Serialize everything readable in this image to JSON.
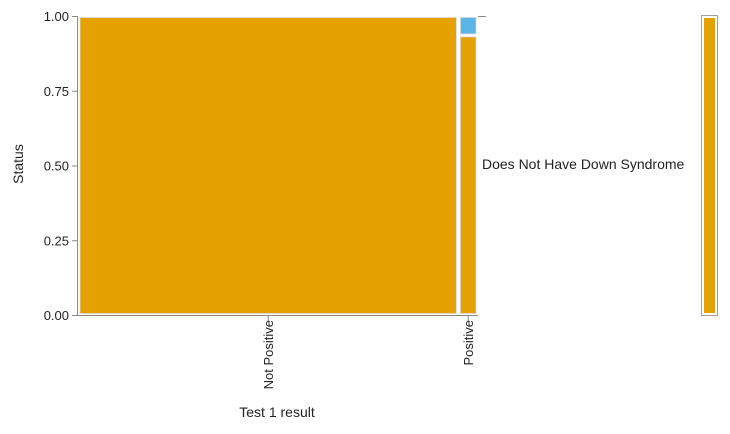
{
  "chart_data": {
    "type": "mosaic",
    "xlabel": "Test 1 result",
    "ylabel": "Status",
    "ylim": [
      0,
      1
    ],
    "yticks": [
      "0.00",
      "0.25",
      "0.50",
      "0.75",
      "1.00"
    ],
    "categories": [
      "Not Positive",
      "Positive"
    ],
    "column_shares": [
      0.951,
      0.049
    ],
    "series": [
      {
        "name": "",
        "color": "#E4A100",
        "values": [
          1.0,
          0.935
        ]
      },
      {
        "name": "",
        "color": "#5AB4E6",
        "values": [
          0.0,
          0.065
        ]
      }
    ],
    "series_label": "Does Not Have Down Syndrome",
    "legend_bar_color": "#E4A100"
  }
}
